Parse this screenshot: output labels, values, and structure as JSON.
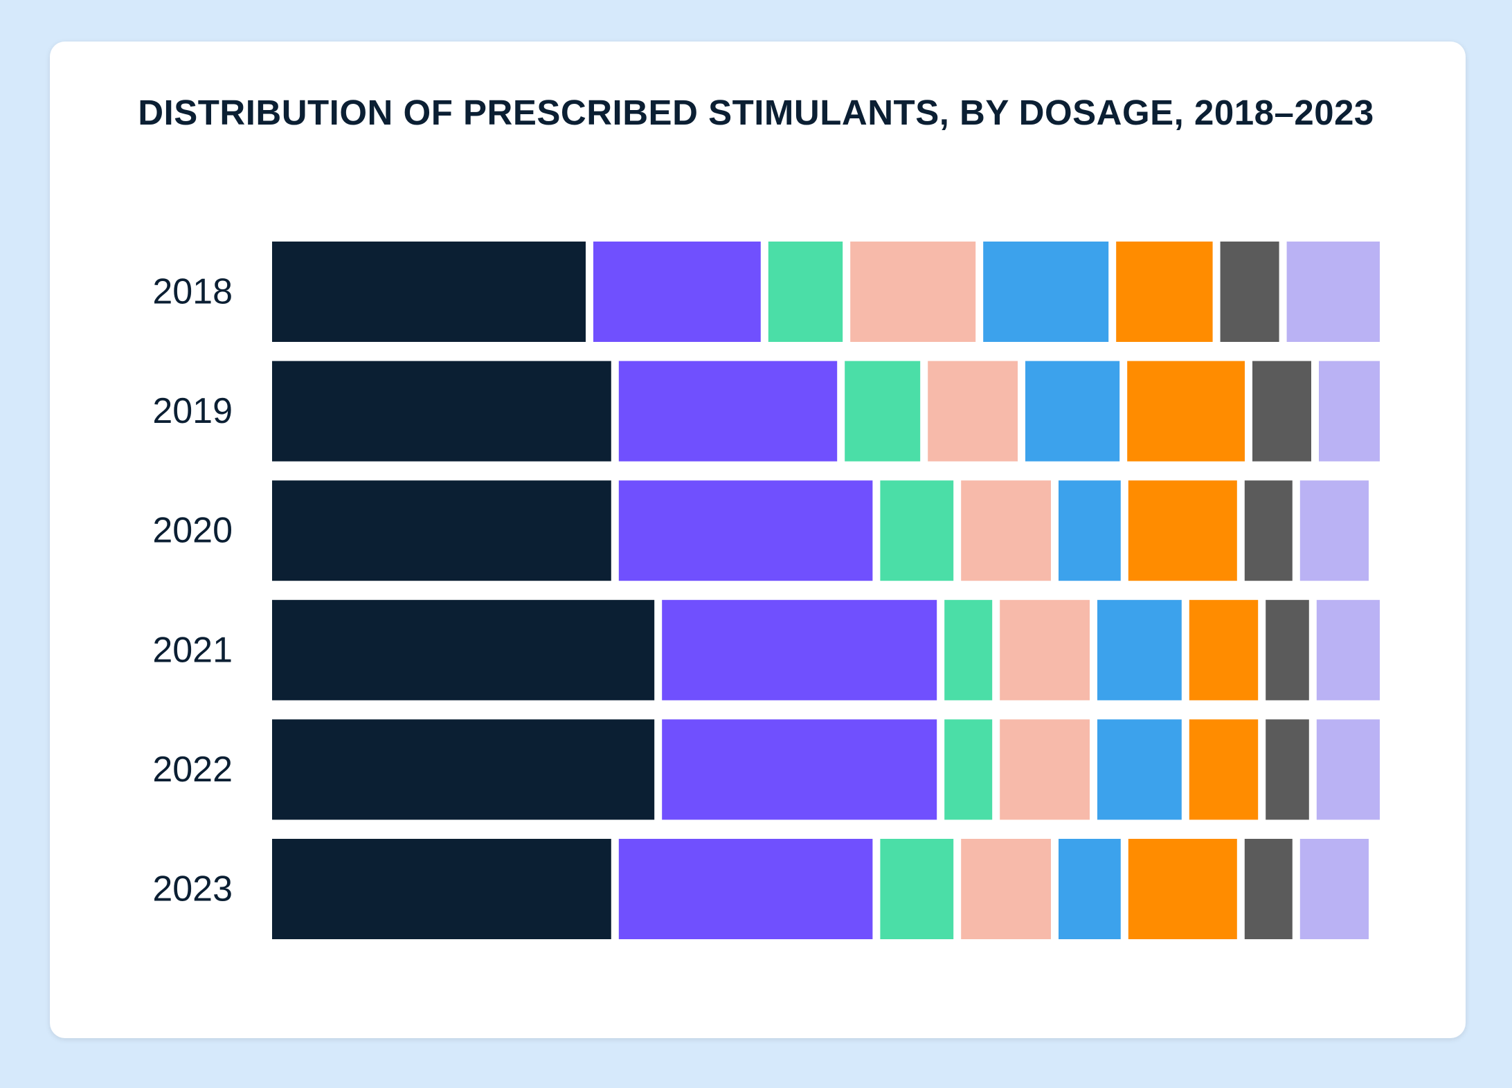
{
  "chart_data": {
    "type": "bar",
    "orientation": "horizontal",
    "stacked": true,
    "title": "DISTRIBUTION OF PRESCRIBED STIMULANTS, BY DOSAGE, 2018–2023",
    "categories": [
      "2018",
      "2019",
      "2020",
      "2021",
      "2022",
      "2023"
    ],
    "xlim": [
      0,
      100
    ],
    "grid": false,
    "legend": "none",
    "series": [
      {
        "color": "#0b1f33",
        "values": [
          29.0,
          31.3,
          31.3,
          35.2,
          35.2,
          31.3
        ]
      },
      {
        "color": "#7050fe",
        "values": [
          15.8,
          20.4,
          23.6,
          25.5,
          25.5,
          23.6
        ]
      },
      {
        "color": "#4bdea7",
        "values": [
          7.4,
          7.5,
          7.3,
          5.0,
          5.0,
          7.3
        ]
      },
      {
        "color": "#f7baaa",
        "values": [
          12.0,
          8.8,
          8.8,
          8.8,
          8.8,
          8.8
        ]
      },
      {
        "color": "#3ca2ec",
        "values": [
          12.0,
          9.2,
          6.3,
          8.3,
          8.3,
          6.3
        ]
      },
      {
        "color": "#ff8c00",
        "values": [
          9.4,
          11.3,
          10.5,
          6.9,
          6.9,
          10.5
        ]
      },
      {
        "color": "#5b5b5b",
        "values": [
          6.0,
          6.0,
          5.0,
          4.6,
          4.6,
          5.0
        ]
      },
      {
        "color": "#bab2f4",
        "values": [
          8.4,
          5.5,
          6.2,
          5.7,
          5.7,
          6.2
        ]
      }
    ]
  }
}
